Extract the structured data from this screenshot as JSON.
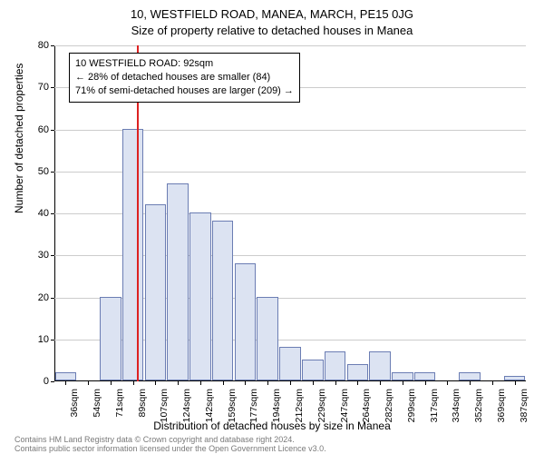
{
  "title_line1": "10, WESTFIELD ROAD, MANEA, MARCH, PE15 0JG",
  "title_line2": "Size of property relative to detached houses in Manea",
  "y_axis_label": "Number of detached properties",
  "x_axis_label": "Distribution of detached houses by size in Manea",
  "y_ticks": [
    0,
    10,
    20,
    30,
    40,
    50,
    60,
    70,
    80
  ],
  "y_max": 80,
  "bar_fill": "#dce3f2",
  "bar_border": "#6b7db3",
  "grid_color": "#cccccc",
  "marker_color": "#d22",
  "marker_value_sqm": 92,
  "x_labels": [
    "36sqm",
    "54sqm",
    "71sqm",
    "89sqm",
    "107sqm",
    "124sqm",
    "142sqm",
    "159sqm",
    "177sqm",
    "194sqm",
    "212sqm",
    "229sqm",
    "247sqm",
    "264sqm",
    "282sqm",
    "299sqm",
    "317sqm",
    "334sqm",
    "352sqm",
    "369sqm",
    "387sqm"
  ],
  "bars": [
    2,
    0,
    20,
    60,
    42,
    47,
    40,
    38,
    28,
    20,
    8,
    5,
    7,
    4,
    7,
    2,
    2,
    0,
    2,
    0,
    1
  ],
  "annotation": {
    "line1": "10 WESTFIELD ROAD: 92sqm",
    "line2": "← 28% of detached houses are smaller (84)",
    "line3": "71% of semi-detached houses are larger (209) →"
  },
  "footer_line1": "Contains HM Land Registry data © Crown copyright and database right 2024.",
  "footer_line2": "Contains public sector information licensed under the Open Government Licence v3.0."
}
